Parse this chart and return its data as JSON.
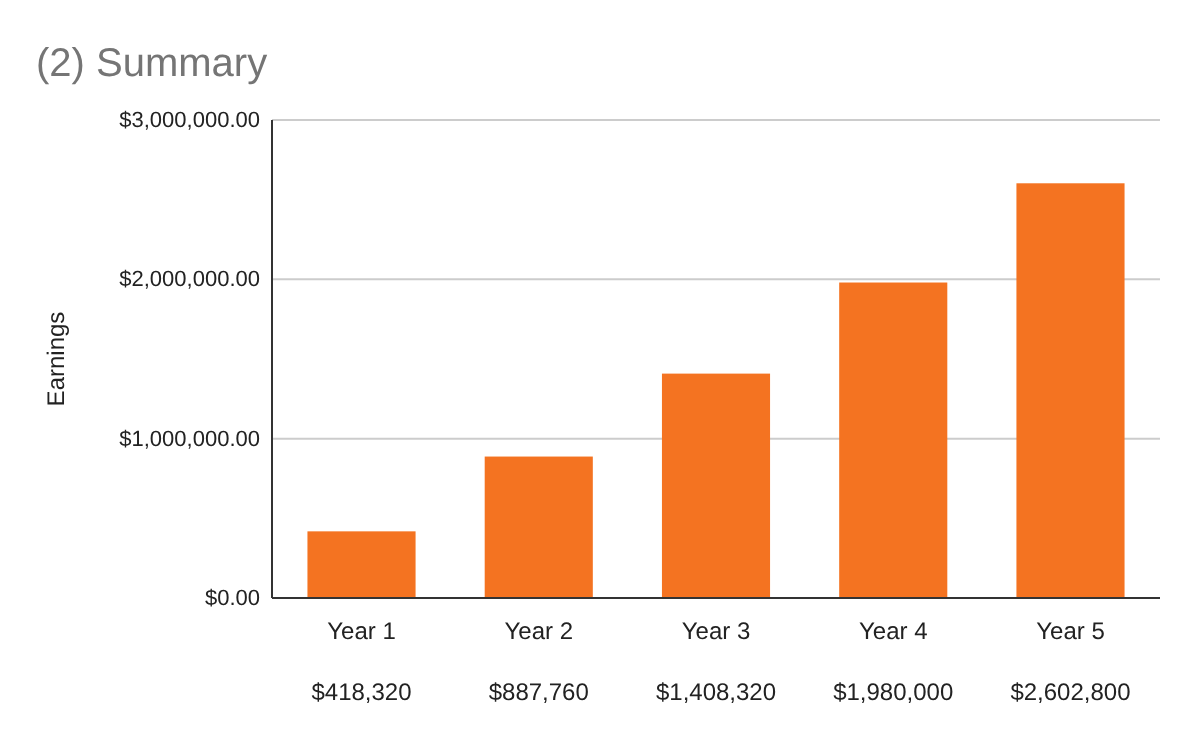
{
  "chart_data": {
    "type": "bar",
    "title": "(2) Summary",
    "ylabel": "Earnings",
    "categories": [
      "Year 1",
      "Year 2",
      "Year 3",
      "Year 4",
      "Year 5"
    ],
    "values": [
      418320,
      887760,
      1408320,
      1980000,
      2602800
    ],
    "value_labels": [
      "$418,320",
      "$887,760",
      "$1,408,320",
      "$1,980,000",
      "$2,602,800"
    ],
    "color": "#f47321",
    "ylim": [
      0,
      3000000
    ],
    "yticks": [
      {
        "value": 0,
        "label": "$0.00"
      },
      {
        "value": 1000000,
        "label": "$1,000,000.00"
      },
      {
        "value": 2000000,
        "label": "$2,000,000.00"
      },
      {
        "value": 3000000,
        "label": "$3,000,000.00"
      }
    ],
    "grid": "y"
  }
}
